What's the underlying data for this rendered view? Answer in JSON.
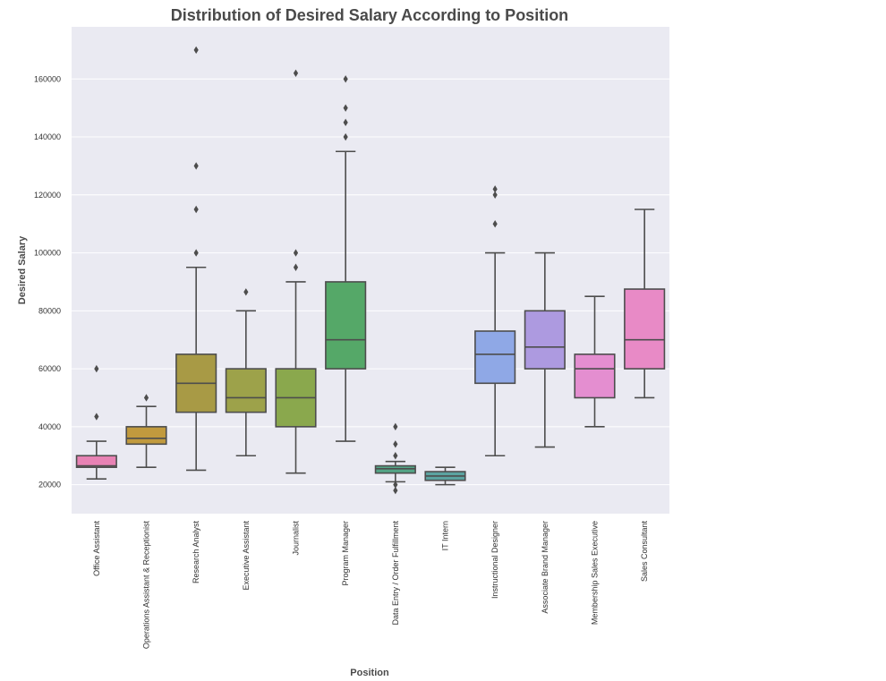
{
  "chart_data": {
    "type": "box",
    "title": "Distribution of Desired Salary According to Position",
    "xlabel": "Position",
    "ylabel": "Desired Salary",
    "ylim": [
      10000,
      178000
    ],
    "yticks": [
      20000,
      40000,
      60000,
      80000,
      100000,
      120000,
      140000,
      160000
    ],
    "ytick_labels": [
      "20000",
      "40000",
      "60000",
      "80000",
      "100000",
      "120000",
      "140000",
      "160000"
    ],
    "grid": true,
    "background": "#eaeaf2",
    "categories": [
      "Office Assistant",
      "Operations Assistant & Receptionist",
      "Research Analyst",
      "Executive Assistant",
      "Journalist",
      "Program Manager",
      "Data Entry / Order Fulfillment",
      "IT Intern",
      "Instructional Designer",
      "Associate Brand Manager",
      "Membership Sales Executive",
      "Sales Consultant"
    ],
    "boxes": [
      {
        "category": "Office Assistant",
        "whisker_low": 22000,
        "q1": 26000,
        "median": 26500,
        "q3": 30000,
        "whisker_high": 35000,
        "outliers": [
          43500,
          60000
        ],
        "color": "#e882b4"
      },
      {
        "category": "Operations Assistant & Receptionist",
        "whisker_low": 26000,
        "q1": 34000,
        "median": 36000,
        "q3": 40000,
        "whisker_high": 47000,
        "outliers": [
          50000
        ],
        "color": "#c19a3e"
      },
      {
        "category": "Research Analyst",
        "whisker_low": 25000,
        "q1": 45000,
        "median": 55000,
        "q3": 65000,
        "whisker_high": 95000,
        "outliers": [
          100000,
          115000,
          130000,
          170000
        ],
        "color": "#a89a45"
      },
      {
        "category": "Executive Assistant",
        "whisker_low": 30000,
        "q1": 45000,
        "median": 50000,
        "q3": 60000,
        "whisker_high": 80000,
        "outliers": [
          86500
        ],
        "color": "#9da24a"
      },
      {
        "category": "Journalist",
        "whisker_low": 24000,
        "q1": 40000,
        "median": 50000,
        "q3": 60000,
        "whisker_high": 90000,
        "outliers": [
          95000,
          100000,
          162000
        ],
        "color": "#8aa84d"
      },
      {
        "category": "Program Manager",
        "whisker_low": 35000,
        "q1": 60000,
        "median": 70000,
        "q3": 90000,
        "whisker_high": 135000,
        "outliers": [
          140000,
          145000,
          150000,
          160000
        ],
        "color": "#55a868"
      },
      {
        "category": "Data Entry / Order Fulfillment",
        "whisker_low": 21000,
        "q1": 24000,
        "median": 25500,
        "q3": 26500,
        "whisker_high": 28000,
        "outliers": [
          18000,
          20000,
          30000,
          34000,
          40000
        ],
        "color": "#54a486"
      },
      {
        "category": "IT Intern",
        "whisker_low": 20000,
        "q1": 21500,
        "median": 23000,
        "q3": 24500,
        "whisker_high": 26000,
        "outliers": [],
        "color": "#5ba3a0"
      },
      {
        "category": "Instructional Designer",
        "whisker_low": 30000,
        "q1": 55000,
        "median": 65000,
        "q3": 73000,
        "whisker_high": 100000,
        "outliers": [
          110000,
          120000,
          122000
        ],
        "color": "#8fa8e6"
      },
      {
        "category": "Associate Brand Manager",
        "whisker_low": 33000,
        "q1": 60000,
        "median": 67500,
        "q3": 80000,
        "whisker_high": 100000,
        "outliers": [],
        "color": "#ad9ae0"
      },
      {
        "category": "Membership Sales Executive",
        "whisker_low": 40000,
        "q1": 50000,
        "median": 60000,
        "q3": 65000,
        "whisker_high": 85000,
        "outliers": [],
        "color": "#e48ed0"
      },
      {
        "category": "Sales Consultant",
        "whisker_low": 50000,
        "q1": 60000,
        "median": 70000,
        "q3": 87500,
        "whisker_high": 115000,
        "outliers": [],
        "color": "#e88ac6"
      }
    ]
  }
}
